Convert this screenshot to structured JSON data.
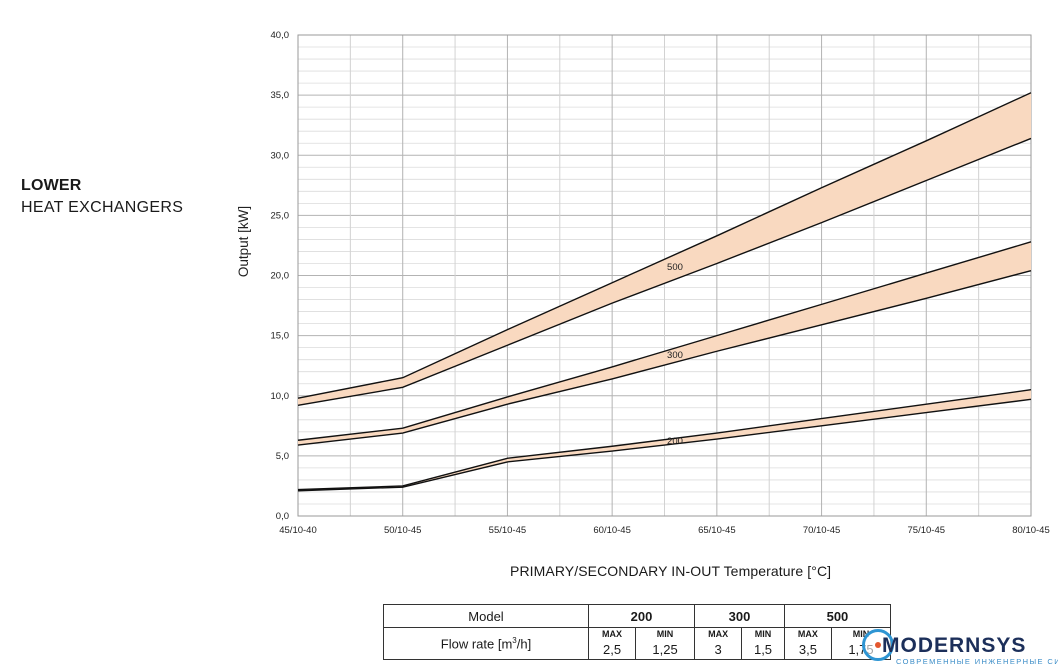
{
  "side_title": {
    "line1": "LOWER",
    "line2": "HEAT EXCHANGERS"
  },
  "chart_data": {
    "type": "area",
    "xlabel": "PRIMARY/SECONDARY IN-OUT Temperature   [°C]",
    "ylabel": "Output [kW]",
    "categories": [
      "45/10-40",
      "50/10-45",
      "55/10-45",
      "60/10-45",
      "65/10-45",
      "70/10-45",
      "75/10-45",
      "80/10-45"
    ],
    "ylim": [
      0,
      40
    ],
    "yticks": [
      "0,0",
      "5,0",
      "10,0",
      "15,0",
      "20,0",
      "25,0",
      "30,0",
      "35,0",
      "40,0"
    ],
    "grid": true,
    "band_color": "#f9d9c0",
    "series": [
      {
        "name": "200",
        "max": [
          2.2,
          2.5,
          4.8,
          5.8,
          6.9,
          8.1,
          9.3,
          10.5
        ],
        "min": [
          2.1,
          2.4,
          4.5,
          5.4,
          6.4,
          7.5,
          8.6,
          9.7
        ],
        "label_at": 3.6
      },
      {
        "name": "300",
        "max": [
          6.3,
          7.3,
          9.9,
          12.4,
          15.0,
          17.6,
          20.2,
          22.8
        ],
        "min": [
          5.9,
          6.9,
          9.3,
          11.4,
          13.7,
          15.9,
          18.1,
          20.4
        ],
        "label_at": 3.6
      },
      {
        "name": "500",
        "max": [
          9.8,
          11.5,
          15.5,
          19.4,
          23.3,
          27.3,
          31.2,
          35.2
        ],
        "min": [
          9.2,
          10.7,
          14.2,
          17.7,
          21.0,
          24.4,
          27.9,
          31.4
        ],
        "label_at": 3.6
      }
    ]
  },
  "table": {
    "model_label": "Model",
    "flow_label": "Flow rate [m",
    "flow_sup": "3",
    "flow_suffix": "/h]",
    "max_label": "MAX",
    "min_label": "MIN",
    "models": [
      {
        "name": "200",
        "max": "2,5",
        "min": "1,25"
      },
      {
        "name": "300",
        "max": "3",
        "min": "1,5"
      },
      {
        "name": "500",
        "max": "3,5",
        "min": "1,75"
      }
    ]
  },
  "logo": {
    "text": "MODERNSYS",
    "tagline": "СОВРЕМЕННЫЕ ИНЖЕНЕРНЫЕ СИСТЕМЫ"
  }
}
